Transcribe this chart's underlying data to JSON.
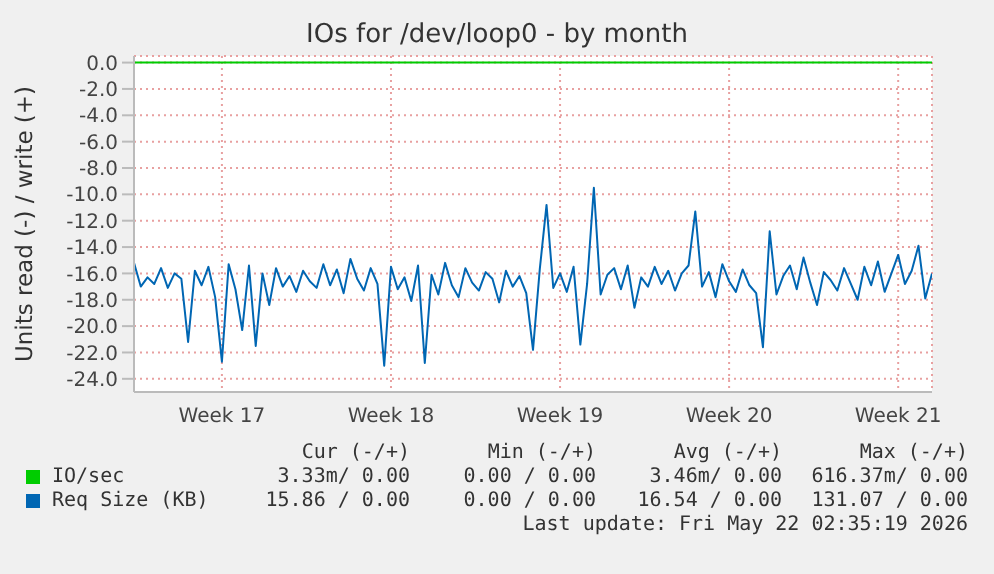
{
  "chart_data": {
    "type": "line",
    "title": "IOs for /dev/loop0 - by month",
    "ylabel": "Units read (-) / write (+)",
    "categories": [
      null,
      null,
      null,
      null,
      null,
      null,
      null,
      null,
      null,
      null,
      null,
      null,
      null,
      "Week 17",
      null,
      null,
      null,
      null,
      null,
      null,
      null,
      null,
      null,
      null,
      null,
      null,
      null,
      null,
      null,
      null,
      null,
      null,
      null,
      null,
      null,
      null,
      null,
      null,
      "Week 18",
      null,
      null,
      null,
      null,
      null,
      null,
      null,
      null,
      null,
      null,
      null,
      null,
      null,
      null,
      null,
      null,
      null,
      null,
      null,
      null,
      null,
      null,
      null,
      null,
      "Week 19",
      null,
      null,
      null,
      null,
      null,
      null,
      null,
      null,
      null,
      null,
      null,
      null,
      null,
      null,
      null,
      null,
      null,
      null,
      null,
      null,
      null,
      null,
      null,
      null,
      "Week 20",
      null,
      null,
      null,
      null,
      null,
      null,
      null,
      null,
      null,
      null,
      null,
      null,
      null,
      null,
      null,
      null,
      null,
      null,
      null,
      null,
      null,
      null,
      null,
      null,
      "Week 21",
      null,
      null,
      null,
      null,
      null
    ],
    "ylim": [
      -25,
      0.5
    ],
    "yticks": [
      {
        "value": 0,
        "label": "0.0"
      },
      {
        "value": -2,
        "label": "-2.0"
      },
      {
        "value": -4,
        "label": "-4.0"
      },
      {
        "value": -6,
        "label": "-6.0"
      },
      {
        "value": -8,
        "label": "-8.0"
      },
      {
        "value": -10,
        "label": "-10.0"
      },
      {
        "value": -12,
        "label": "-12.0"
      },
      {
        "value": -14,
        "label": "-14.0"
      },
      {
        "value": -16,
        "label": "-16.0"
      },
      {
        "value": -18,
        "label": "-18.0"
      },
      {
        "value": -20,
        "label": "-20.0"
      },
      {
        "value": -22,
        "label": "-22.0"
      },
      {
        "value": -24,
        "label": "-24.0"
      }
    ],
    "grid": true,
    "legend": "bottom",
    "marker": "none",
    "line_style": "solid",
    "series": [
      {
        "name": "IO/sec",
        "color": "#00cc00",
        "values": [
          0,
          0,
          0,
          0,
          0,
          0,
          0,
          0,
          0,
          0,
          0,
          0,
          0,
          0,
          0,
          0,
          0,
          0,
          0,
          0,
          0,
          0,
          0,
          0,
          0,
          0,
          0,
          0,
          0,
          0,
          0,
          0,
          0,
          0,
          0,
          0,
          0,
          0,
          0,
          0,
          0,
          0,
          0,
          0,
          0,
          0,
          0,
          0,
          0,
          0,
          0,
          0,
          0,
          0,
          0,
          0,
          0,
          0,
          0,
          0,
          0,
          0,
          0,
          0,
          0,
          0,
          0,
          0,
          0,
          0,
          0,
          0,
          0,
          0,
          0,
          0,
          0,
          0,
          0,
          0,
          0,
          0,
          0,
          0,
          0,
          0,
          0,
          0,
          0,
          0,
          0,
          0,
          0,
          0,
          0,
          0,
          0,
          0,
          0,
          0,
          0,
          0,
          0,
          0,
          0,
          0,
          0,
          0,
          0,
          0,
          0,
          0,
          0,
          0,
          0,
          0,
          0,
          0,
          0
        ]
      },
      {
        "name": "Req Size (KB)",
        "color": "#0066b3",
        "values": [
          -15.2,
          -17.0,
          -16.3,
          -16.8,
          -15.6,
          -17.1,
          -16.0,
          -16.4,
          -21.2,
          -15.8,
          -16.9,
          -15.5,
          -17.8,
          -22.7,
          -15.3,
          -17.2,
          -20.3,
          -15.4,
          -21.5,
          -16.0,
          -18.4,
          -15.6,
          -17.0,
          -16.2,
          -17.4,
          -15.8,
          -16.6,
          -17.1,
          -15.3,
          -16.9,
          -15.7,
          -17.5,
          -14.9,
          -16.4,
          -17.3,
          -15.6,
          -16.8,
          -23.0,
          -15.5,
          -17.2,
          -16.3,
          -18.1,
          -15.4,
          -22.8,
          -16.1,
          -17.6,
          -15.2,
          -16.9,
          -17.8,
          -15.6,
          -16.7,
          -17.3,
          -15.9,
          -16.4,
          -18.2,
          -15.8,
          -17.0,
          -16.2,
          -17.5,
          -21.8,
          -15.7,
          -10.8,
          -17.1,
          -16.0,
          -17.4,
          -15.5,
          -21.4,
          -16.8,
          -9.5,
          -17.6,
          -16.1,
          -15.6,
          -17.2,
          -15.4,
          -18.6,
          -16.3,
          -17.0,
          -15.5,
          -16.8,
          -15.8,
          -17.3,
          -16.0,
          -15.4,
          -11.3,
          -17.0,
          -15.9,
          -17.8,
          -15.3,
          -16.6,
          -17.4,
          -15.7,
          -16.9,
          -17.5,
          -21.6,
          -12.8,
          -17.6,
          -16.2,
          -15.4,
          -17.2,
          -14.8,
          -16.7,
          -18.4,
          -15.9,
          -16.5,
          -17.3,
          -15.6,
          -16.8,
          -18.0,
          -15.5,
          -16.9,
          -15.1,
          -17.4,
          -16.0,
          -14.6,
          -16.8,
          -15.8,
          -13.9,
          -17.9,
          -16.0
        ]
      }
    ],
    "annotations": [
      "Cur (-/+)",
      "Min (-/+)",
      "Avg (-/+)",
      "Max (-/+)",
      "3.33m/ 0.00",
      "0.00 / 0.00",
      "3.46m/ 0.00",
      "616.37m/ 0.00",
      "15.86 / 0.00",
      "0.00 / 0.00",
      "16.54 / 0.00",
      "131.07 / 0.00",
      "Last update: Fri May 22 02:35:19 2026"
    ]
  }
}
